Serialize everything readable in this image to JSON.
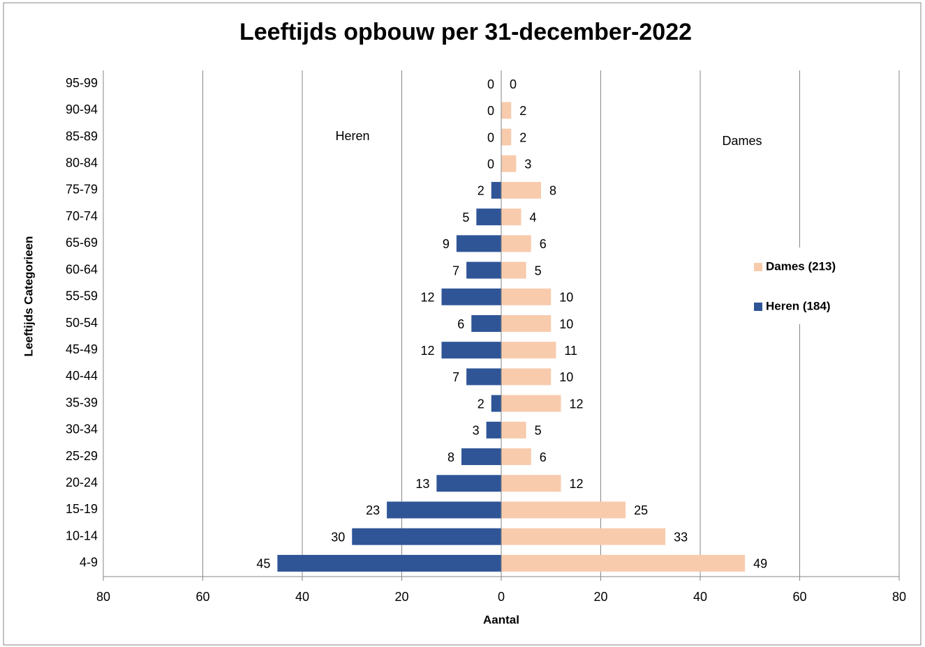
{
  "chart_data": {
    "type": "pyramid",
    "title": "Leeftijds opbouw per 31-december-2022",
    "y_label": "Leeftijds Categorieen",
    "x_label": "Aantal",
    "annotations": [
      "Heren",
      "Dames"
    ],
    "categories": [
      "4-9",
      "10-14",
      "15-19",
      "20-24",
      "25-29",
      "30-34",
      "35-39",
      "40-44",
      "45-49",
      "50-54",
      "55-59",
      "60-64",
      "65-69",
      "70-74",
      "75-79",
      "80-84",
      "85-89",
      "90-94",
      "95-99"
    ],
    "series": [
      {
        "name": "Dames (213)",
        "color": "#f8cbad",
        "values": [
          49,
          33,
          25,
          12,
          6,
          5,
          12,
          10,
          11,
          10,
          10,
          5,
          6,
          4,
          8,
          3,
          2,
          2,
          0
        ]
      },
      {
        "name": "Heren (184)",
        "color": "#2f5597",
        "values": [
          -45,
          -30,
          -23,
          -13,
          -8,
          -3,
          -2,
          -7,
          -12,
          -6,
          -12,
          -7,
          -9,
          -5,
          -2,
          0,
          0,
          0,
          0
        ],
        "value_labels": [
          "45",
          "30",
          "23",
          "13",
          "8",
          "3",
          "2",
          "7",
          "12",
          "6",
          "12",
          "7",
          "9",
          "5",
          "2",
          "0",
          "0",
          "0",
          "0"
        ]
      }
    ],
    "xlim": [
      -80,
      80
    ],
    "xticks": [
      {
        "value": -80,
        "label": "80"
      },
      {
        "value": -60,
        "label": "60"
      },
      {
        "value": -40,
        "label": "40"
      },
      {
        "value": -20,
        "label": "20"
      },
      0,
      20,
      40,
      60,
      80
    ],
    "grid": true
  }
}
